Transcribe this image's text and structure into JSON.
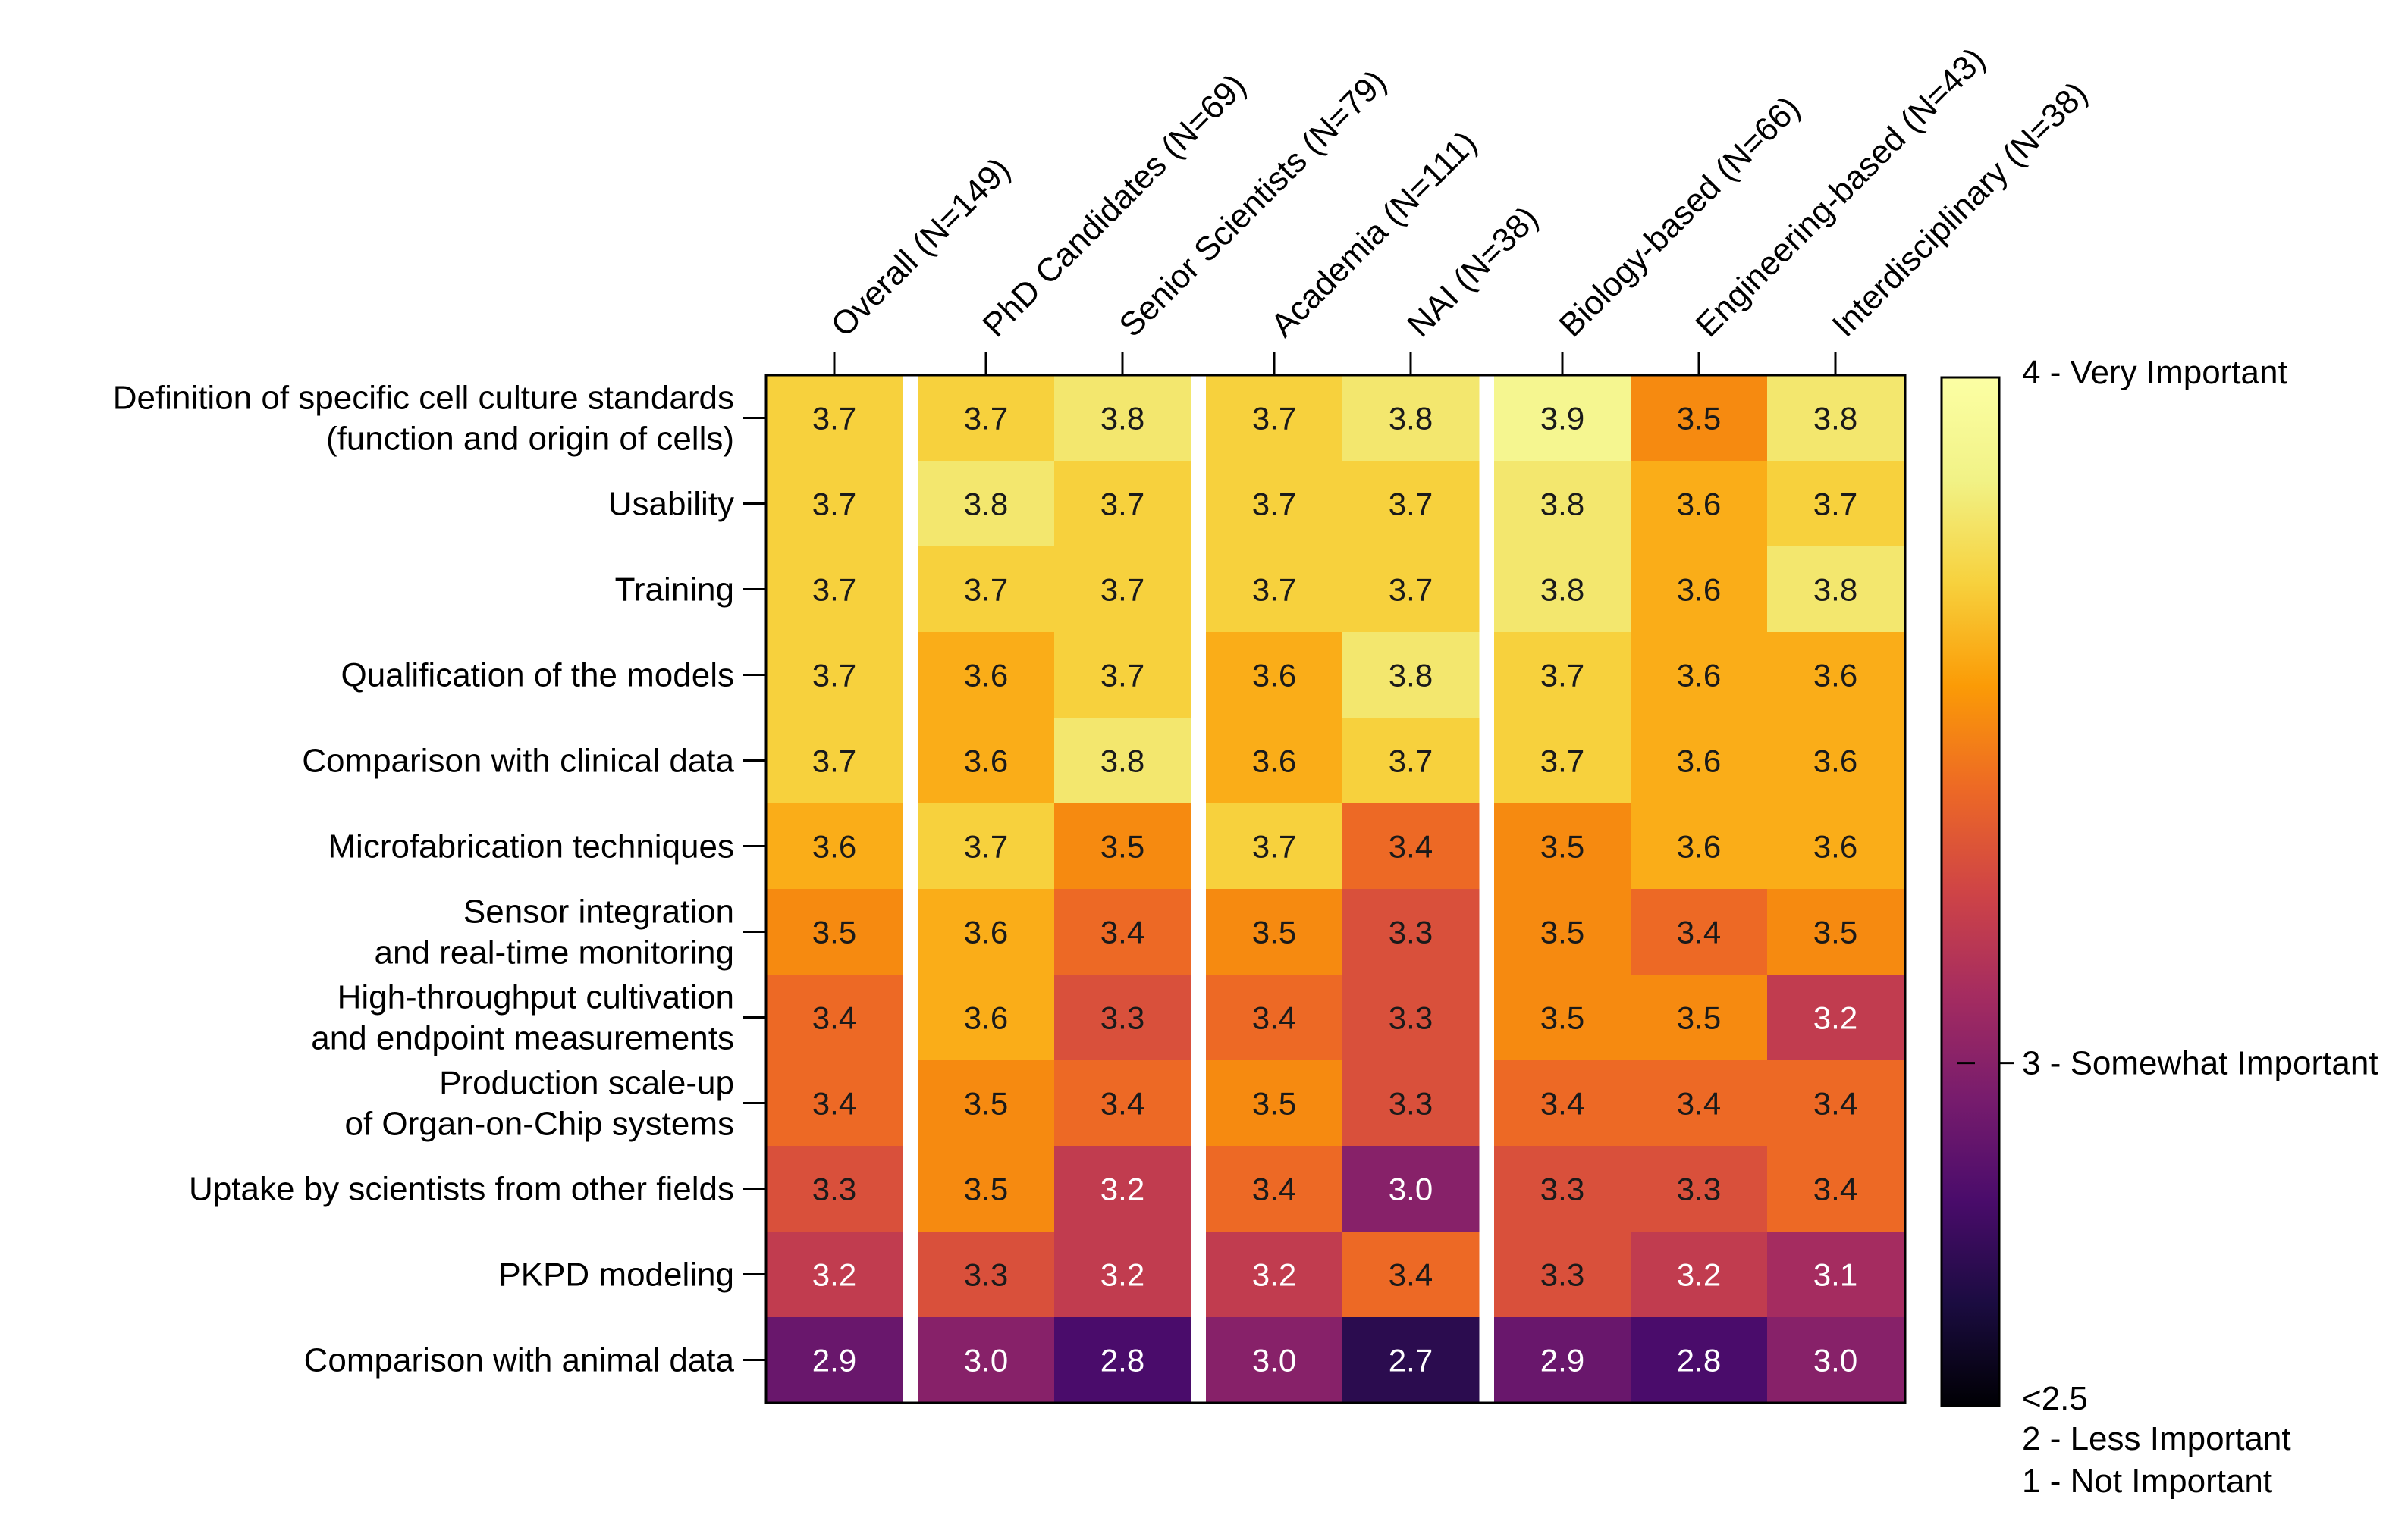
{
  "chart_data": {
    "type": "heatmap",
    "title": "",
    "columns": [
      "Overall (N=149)",
      "PhD Candidates (N=69)",
      "Senior Scientists (N=79)",
      "Academia (N=111)",
      "NAI (N=38)",
      "Biology-based (N=66)",
      "Engineering-based (N=43)",
      "Interdisciplinary (N=38)"
    ],
    "column_groups": [
      [
        0
      ],
      [
        1,
        2
      ],
      [
        3,
        4
      ],
      [
        5,
        6,
        7
      ]
    ],
    "rows": [
      [
        "Definition of specific cell culture standards",
        "(function and origin of cells)"
      ],
      [
        "Usability"
      ],
      [
        "Training"
      ],
      [
        "Qualification of the models"
      ],
      [
        "Comparison with clinical data"
      ],
      [
        "Microfabrication techniques"
      ],
      [
        "Sensor integration",
        "and real-time monitoring"
      ],
      [
        "High-throughput cultivation",
        "and endpoint measurements"
      ],
      [
        "Production scale-up",
        "of Organ-on-Chip systems"
      ],
      [
        "Uptake by scientists from other fields"
      ],
      [
        "PKPD modeling"
      ],
      [
        "Comparison with animal data"
      ]
    ],
    "values": [
      [
        3.7,
        3.7,
        3.8,
        3.7,
        3.8,
        3.9,
        3.5,
        3.8
      ],
      [
        3.7,
        3.8,
        3.7,
        3.7,
        3.7,
        3.8,
        3.6,
        3.7
      ],
      [
        3.7,
        3.7,
        3.7,
        3.7,
        3.7,
        3.8,
        3.6,
        3.8
      ],
      [
        3.7,
        3.6,
        3.7,
        3.6,
        3.8,
        3.7,
        3.6,
        3.6
      ],
      [
        3.7,
        3.6,
        3.8,
        3.6,
        3.7,
        3.7,
        3.6,
        3.6
      ],
      [
        3.6,
        3.7,
        3.5,
        3.7,
        3.4,
        3.5,
        3.6,
        3.6
      ],
      [
        3.5,
        3.6,
        3.4,
        3.5,
        3.3,
        3.5,
        3.4,
        3.5
      ],
      [
        3.4,
        3.6,
        3.3,
        3.4,
        3.3,
        3.5,
        3.5,
        3.2
      ],
      [
        3.4,
        3.5,
        3.4,
        3.5,
        3.3,
        3.4,
        3.4,
        3.4
      ],
      [
        3.3,
        3.5,
        3.2,
        3.4,
        3.0,
        3.3,
        3.3,
        3.4
      ],
      [
        3.2,
        3.3,
        3.2,
        3.2,
        3.4,
        3.3,
        3.2,
        3.1
      ],
      [
        2.9,
        3.0,
        2.8,
        3.0,
        2.7,
        2.9,
        2.8,
        3.0
      ]
    ],
    "color_scale": {
      "name": "inferno",
      "min": 2.5,
      "max": 4.0,
      "labels": [
        "4 - Very Important",
        "3 - Somewhat Important",
        "<2.5",
        "2 - Less Important",
        "1 - Not Important"
      ]
    }
  }
}
